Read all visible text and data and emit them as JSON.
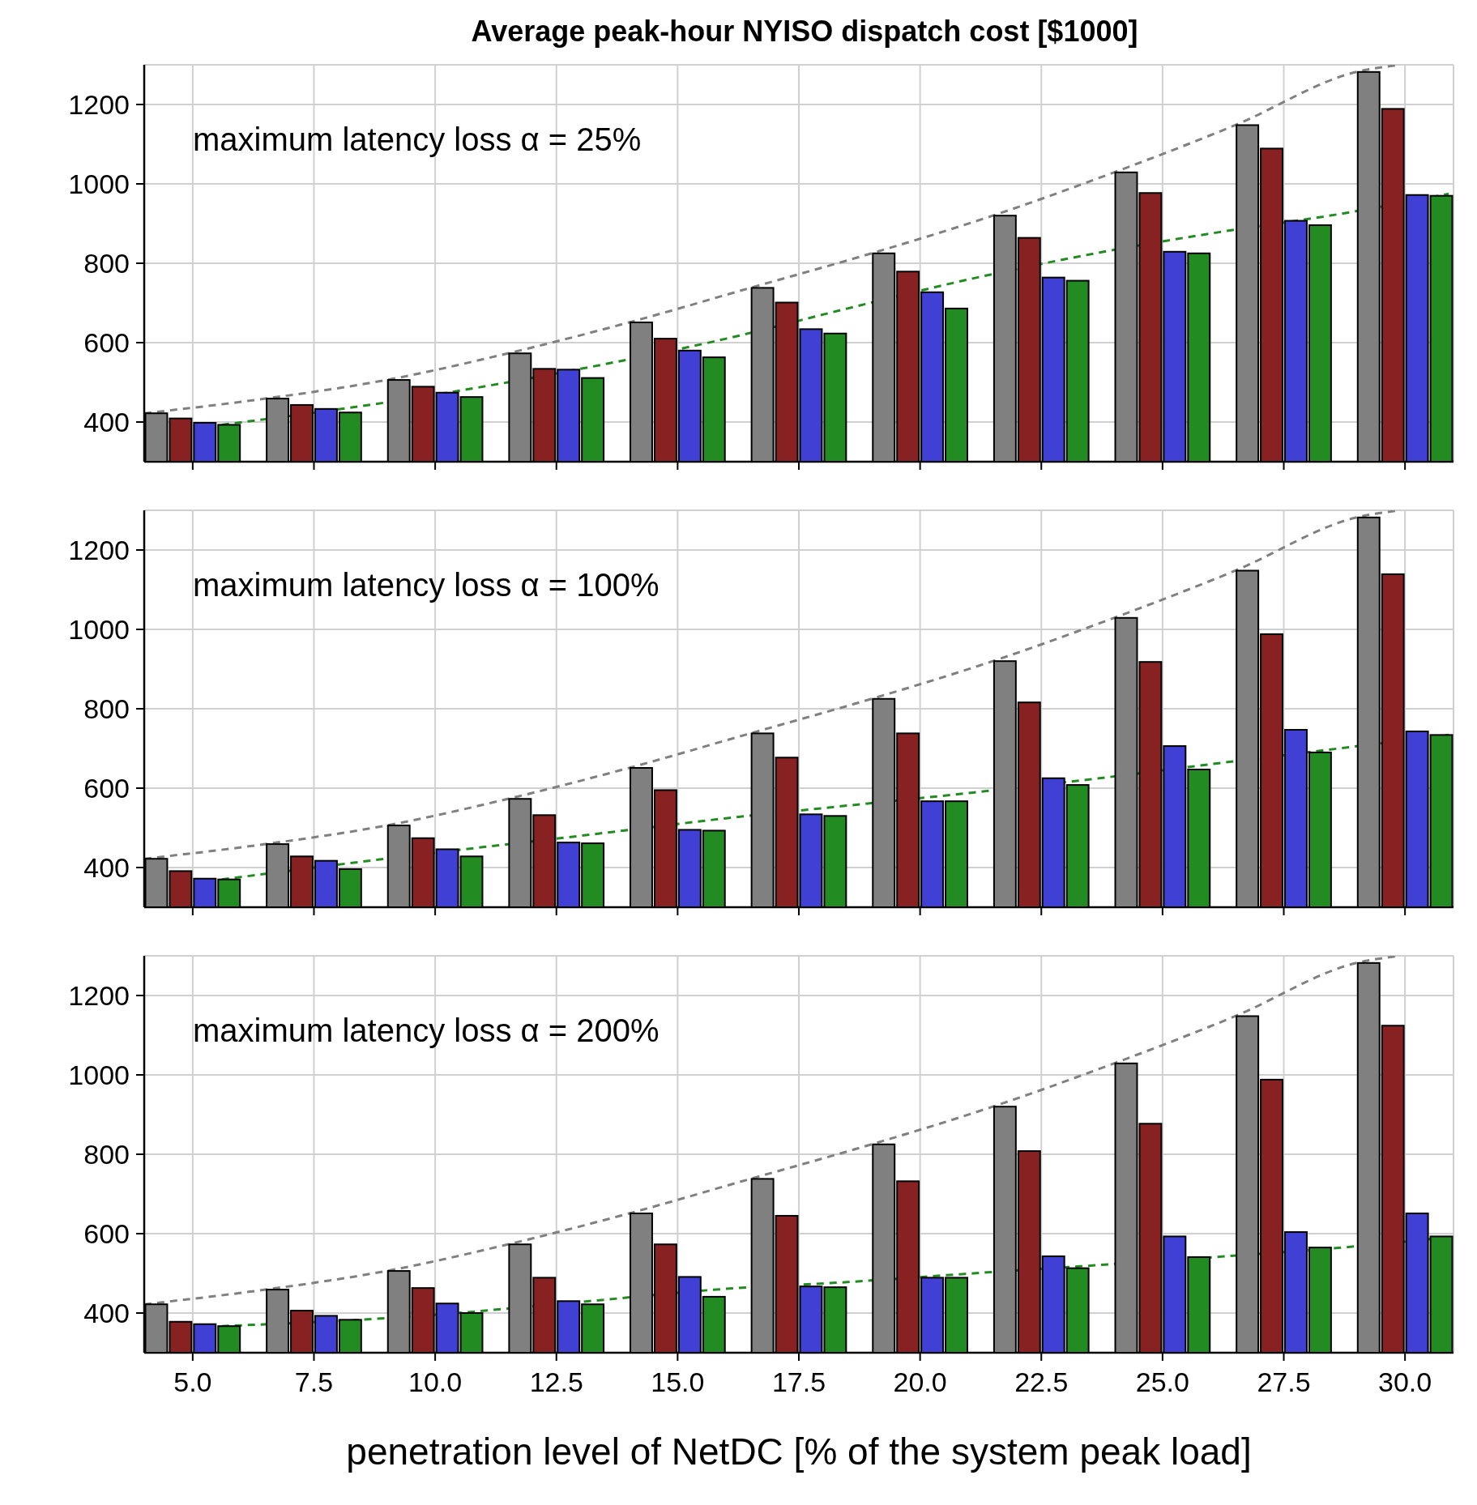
{
  "chart_data": [
    {
      "type": "bar",
      "title": "Average peak-hour NYISO dispatch cost [$1000]",
      "annotations": [
        "maximum latency loss α = 25%"
      ],
      "xlim": [
        4,
        31
      ],
      "ylim": [
        300,
        1300
      ],
      "xticks": [
        5,
        7.5,
        10,
        12.5,
        15,
        17.5,
        20,
        22.5,
        25,
        27.5,
        30
      ],
      "yticks": [
        400,
        600,
        800,
        1000,
        1200
      ],
      "grid": true,
      "tick_labels": "y",
      "series": [
        {
          "color": "#808080",
          "x": [
            4.25,
            6.75,
            9.25,
            11.75,
            14.25,
            16.75,
            19.25,
            21.75,
            24.25,
            26.75,
            29.25
          ],
          "values": [
            422,
            459,
            506,
            573,
            651,
            738,
            825,
            920,
            1029,
            1148,
            1282
          ]
        },
        {
          "color": "#882222",
          "x": [
            4.75,
            7.25,
            9.75,
            12.25,
            14.75,
            17.25,
            19.75,
            22.25,
            24.75,
            27.25,
            29.75
          ],
          "values": [
            409,
            443,
            489,
            534,
            610,
            701,
            779,
            864,
            977,
            1089,
            1189
          ]
        },
        {
          "color": "#4040d4",
          "x": [
            5.25,
            7.75,
            10.25,
            12.75,
            15.25,
            17.75,
            20.25,
            22.75,
            25.25,
            27.75,
            30.25
          ],
          "values": [
            398,
            433,
            474,
            532,
            580,
            634,
            727,
            764,
            829,
            907,
            972
          ]
        },
        {
          "color": "#228b22",
          "x": [
            5.75,
            8.25,
            10.75,
            13.25,
            15.75,
            18.25,
            20.75,
            23.25,
            25.75,
            28.25,
            30.75
          ],
          "values": [
            393,
            424,
            463,
            511,
            563,
            623,
            686,
            756,
            825,
            896,
            970
          ]
        },
        {
          "type": "line",
          "line_style": "dashed",
          "color": "#808080",
          "x": [
            4,
            6.5,
            9,
            11.5,
            14,
            16.5,
            19,
            21.5,
            24,
            26.5,
            29,
            29.9
          ],
          "values": [
            422,
            459,
            506,
            573,
            651,
            738,
            825,
            920,
            1029,
            1148,
            1282,
            1300
          ]
        },
        {
          "type": "line",
          "line_style": "dashed",
          "color": "#228b22",
          "x": [
            5.6,
            9.5,
            13,
            16,
            18.5,
            21.1,
            23.7,
            26.3,
            28.7,
            30.9
          ],
          "values": [
            393,
            459,
            534,
            610,
            686,
            762,
            827,
            881,
            925,
            975
          ]
        }
      ]
    },
    {
      "type": "bar",
      "annotations": [
        "maximum latency loss α = 100%"
      ],
      "xlim": [
        4,
        31
      ],
      "ylim": [
        300,
        1300
      ],
      "xticks": [
        5,
        7.5,
        10,
        12.5,
        15,
        17.5,
        20,
        22.5,
        25,
        27.5,
        30
      ],
      "yticks": [
        400,
        600,
        800,
        1000,
        1200
      ],
      "grid": true,
      "tick_labels": "y",
      "series": [
        {
          "color": "#808080",
          "x": [
            4.25,
            6.75,
            9.25,
            11.75,
            14.25,
            16.75,
            19.25,
            21.75,
            24.25,
            26.75,
            29.25
          ],
          "values": [
            422,
            459,
            506,
            573,
            651,
            738,
            825,
            920,
            1029,
            1148,
            1282
          ]
        },
        {
          "color": "#882222",
          "x": [
            4.75,
            7.25,
            9.75,
            12.25,
            14.75,
            17.25,
            19.75,
            22.25,
            24.75,
            27.25,
            29.75
          ],
          "values": [
            391,
            428,
            474,
            532,
            595,
            677,
            738,
            816,
            918,
            988,
            1139
          ]
        },
        {
          "color": "#4040d4",
          "x": [
            5.25,
            7.75,
            10.25,
            12.75,
            15.25,
            17.75,
            20.25,
            22.75,
            25.25,
            27.75,
            30.25
          ],
          "values": [
            372,
            417,
            446,
            463,
            495,
            534,
            567,
            625,
            706,
            747,
            743
          ]
        },
        {
          "color": "#228b22",
          "x": [
            5.75,
            8.25,
            10.75,
            13.25,
            15.75,
            18.25,
            20.75,
            23.25,
            25.75,
            28.25,
            30.75
          ],
          "values": [
            370,
            396,
            428,
            461,
            493,
            530,
            567,
            608,
            647,
            690,
            734
          ]
        },
        {
          "type": "line",
          "line_style": "dashed",
          "color": "#808080",
          "x": [
            4,
            6.5,
            9,
            11.5,
            14,
            16.5,
            19,
            21.5,
            24,
            26.5,
            29,
            29.9
          ],
          "values": [
            422,
            459,
            506,
            573,
            651,
            738,
            825,
            920,
            1029,
            1148,
            1282,
            1300
          ]
        },
        {
          "type": "line",
          "line_style": "dashed",
          "color": "#228b22",
          "x": [
            5.6,
            9.5,
            13,
            16,
            18.5,
            21.1,
            23.7,
            26.3,
            28.7,
            30.9
          ],
          "values": [
            370,
            430,
            480,
            524,
            556,
            589,
            625,
            665,
            701,
            734
          ]
        }
      ]
    },
    {
      "type": "bar",
      "xlabel": "penetration level of NetDC [% of the system peak load]",
      "annotations": [
        "maximum latency loss α = 200%"
      ],
      "xlim": [
        4,
        31
      ],
      "ylim": [
        300,
        1300
      ],
      "xticks": [
        {
          "value": 5,
          "label": "5.0"
        },
        {
          "value": 7.5,
          "label": "7.5"
        },
        {
          "value": 10,
          "label": "10.0"
        },
        {
          "value": 12.5,
          "label": "12.5"
        },
        {
          "value": 15,
          "label": "15.0"
        },
        {
          "value": 17.5,
          "label": "17.5"
        },
        {
          "value": 20,
          "label": "20.0"
        },
        {
          "value": 22.5,
          "label": "22.5"
        },
        {
          "value": 25,
          "label": "25.0"
        },
        {
          "value": 27.5,
          "label": "27.5"
        },
        {
          "value": 30,
          "label": "30.0"
        }
      ],
      "yticks": [
        400,
        600,
        800,
        1000,
        1200
      ],
      "grid": true,
      "series": [
        {
          "color": "#808080",
          "x": [
            4.25,
            6.75,
            9.25,
            11.75,
            14.25,
            16.75,
            19.25,
            21.75,
            24.25,
            26.75,
            29.25
          ],
          "values": [
            422,
            459,
            506,
            573,
            651,
            738,
            825,
            920,
            1029,
            1148,
            1282
          ]
        },
        {
          "color": "#882222",
          "x": [
            4.75,
            7.25,
            9.75,
            12.25,
            14.75,
            17.25,
            19.75,
            22.25,
            24.75,
            27.25,
            29.75
          ],
          "values": [
            378,
            406,
            463,
            489,
            573,
            645,
            732,
            808,
            877,
            988,
            1124
          ]
        },
        {
          "color": "#4040d4",
          "x": [
            5.25,
            7.75,
            10.25,
            12.75,
            15.25,
            17.75,
            20.25,
            22.75,
            25.25,
            27.75,
            30.25
          ],
          "values": [
            372,
            393,
            424,
            430,
            491,
            467,
            489,
            543,
            593,
            604,
            651
          ]
        },
        {
          "color": "#228b22",
          "x": [
            5.75,
            8.25,
            10.75,
            13.25,
            15.75,
            18.25,
            20.75,
            23.25,
            25.75,
            28.25,
            30.75
          ],
          "values": [
            367,
            383,
            400,
            422,
            441,
            465,
            489,
            513,
            541,
            565,
            593
          ]
        },
        {
          "type": "line",
          "line_style": "dashed",
          "color": "#808080",
          "x": [
            4,
            6.5,
            9,
            11.5,
            14,
            16.5,
            19,
            21.5,
            24,
            26.5,
            29,
            29.9
          ],
          "values": [
            422,
            459,
            506,
            573,
            651,
            738,
            825,
            920,
            1029,
            1148,
            1282,
            1300
          ]
        },
        {
          "type": "line",
          "line_style": "dashed",
          "color": "#228b22",
          "x": [
            5.6,
            9.5,
            13,
            16,
            18.5,
            21.1,
            23.7,
            26.3,
            28.7,
            30.9
          ],
          "values": [
            367,
            391,
            428,
            461,
            478,
            500,
            521,
            543,
            565,
            591
          ]
        }
      ]
    }
  ]
}
